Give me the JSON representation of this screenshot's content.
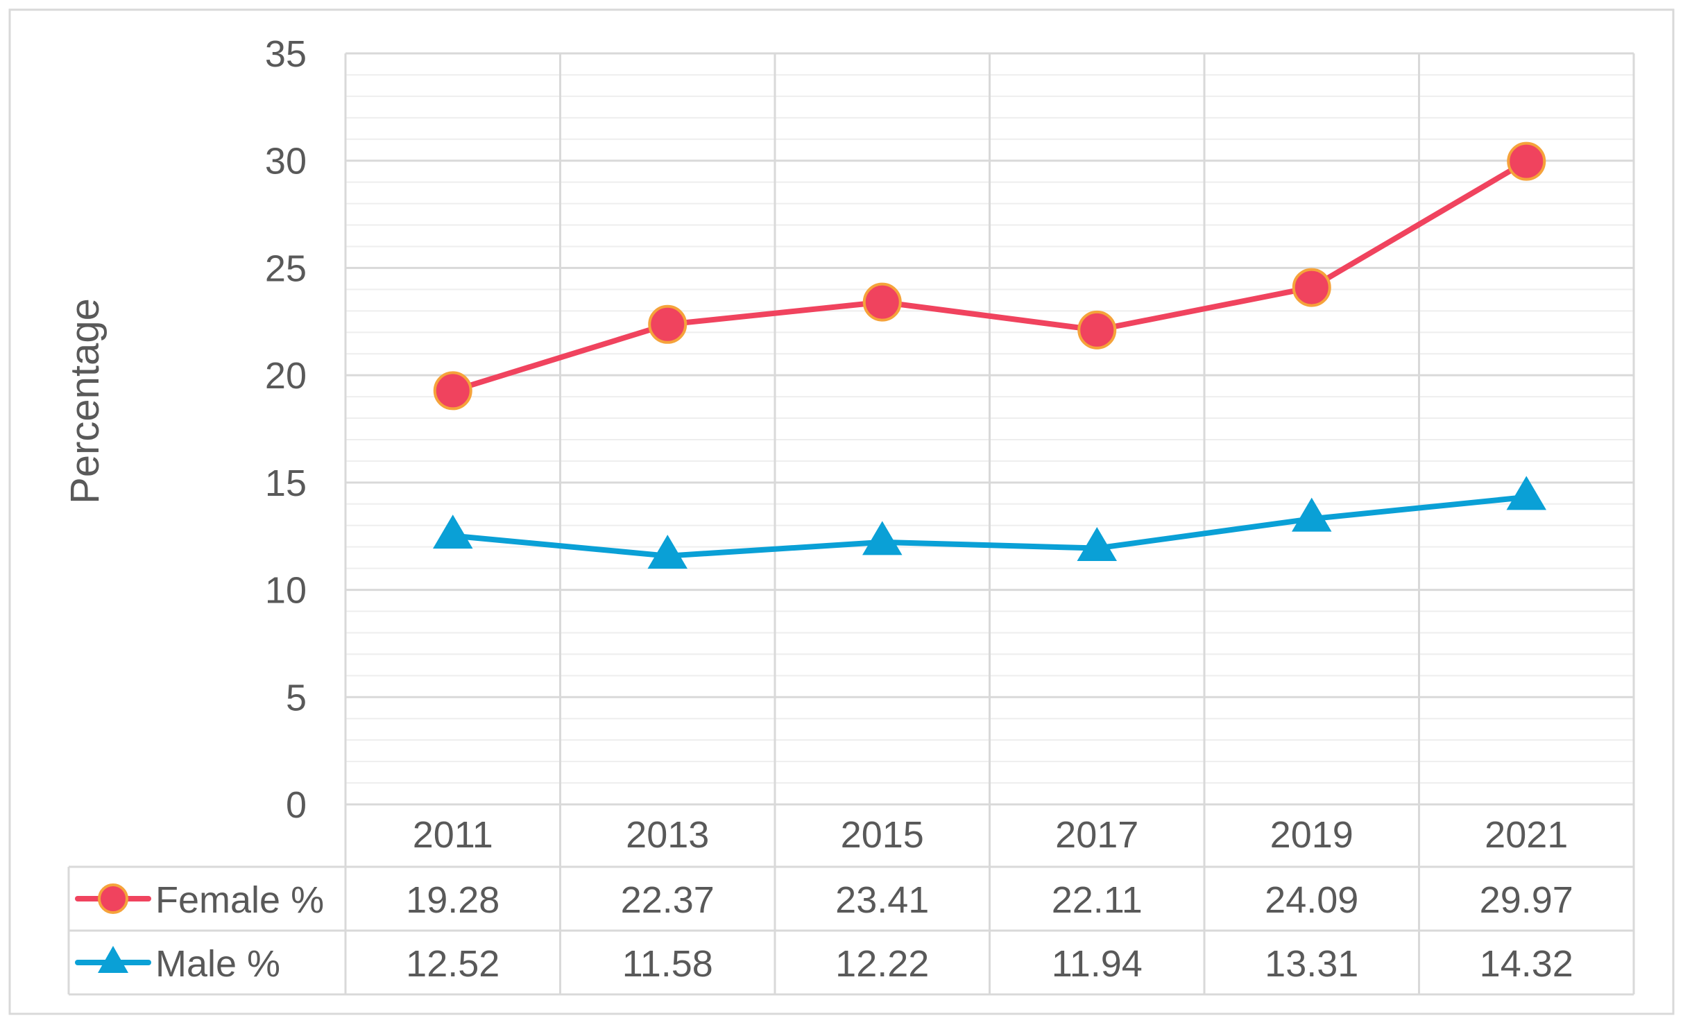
{
  "chart_data": {
    "type": "line",
    "title": "",
    "xlabel": "",
    "ylabel": "Percentage",
    "ylim": [
      0,
      35
    ],
    "ytick_step": 5,
    "minor_gridlines": true,
    "categories": [
      "2011",
      "2013",
      "2015",
      "2017",
      "2019",
      "2021"
    ],
    "series": [
      {
        "name": "Female %",
        "values": [
          19.28,
          22.37,
          23.41,
          22.11,
          24.09,
          29.97
        ],
        "color": "#f0435e",
        "marker_fill": "#f0435e",
        "marker_stroke": "#f5a33b",
        "marker": "circle"
      },
      {
        "name": "Male %",
        "values": [
          12.52,
          11.58,
          12.22,
          11.94,
          13.31,
          14.32
        ],
        "color": "#0aa0d6",
        "marker_fill": "#0aa0d6",
        "marker_stroke": "#0aa0d6",
        "marker": "triangle"
      }
    ],
    "legend": "data-table below chart",
    "data_table": {
      "rows": [
        [
          "19.28",
          "22.37",
          "23.41",
          "22.11",
          "24.09",
          "29.97"
        ],
        [
          "12.52",
          "11.58",
          "12.22",
          "11.94",
          "13.31",
          "14.32"
        ]
      ]
    },
    "colors": {
      "major_grid": "#d9d9d9",
      "minor_grid": "#eeeeee",
      "text": "#595959",
      "frame": "#d9d9d9"
    }
  }
}
